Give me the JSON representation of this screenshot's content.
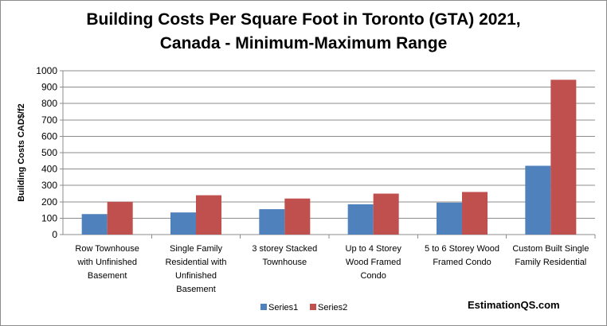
{
  "chart_data": {
    "type": "bar",
    "title_lines": [
      "Building Costs Per Square Foot in Toronto (GTA) 2021,",
      "Canada - Minimum-Maximum Range"
    ],
    "ylabel": "Building Costs  CAD$/f2",
    "xlabel": "",
    "ylim": [
      0,
      1000
    ],
    "ytick_step": 100,
    "grid": true,
    "legend_position": "bottom",
    "categories": [
      [
        "Row Townhouse",
        "with Unfinished",
        "Basement"
      ],
      [
        "Single Family",
        "Residential with",
        "Unfinished",
        "Basement"
      ],
      [
        "3 storey Stacked",
        "Townhouse"
      ],
      [
        "Up to 4 Storey",
        "Wood Framed",
        "Condo"
      ],
      [
        "5 to 6 Storey Wood",
        "Framed Condo"
      ],
      [
        "Custom Built Single",
        "Family Residential"
      ]
    ],
    "series": [
      {
        "name": "Series1",
        "color": "#4f81bd",
        "values": [
          125,
          135,
          155,
          185,
          195,
          420
        ]
      },
      {
        "name": "Series2",
        "color": "#c0504d",
        "values": [
          200,
          240,
          220,
          250,
          260,
          945
        ]
      }
    ],
    "watermark": "EstimationQS.com"
  }
}
